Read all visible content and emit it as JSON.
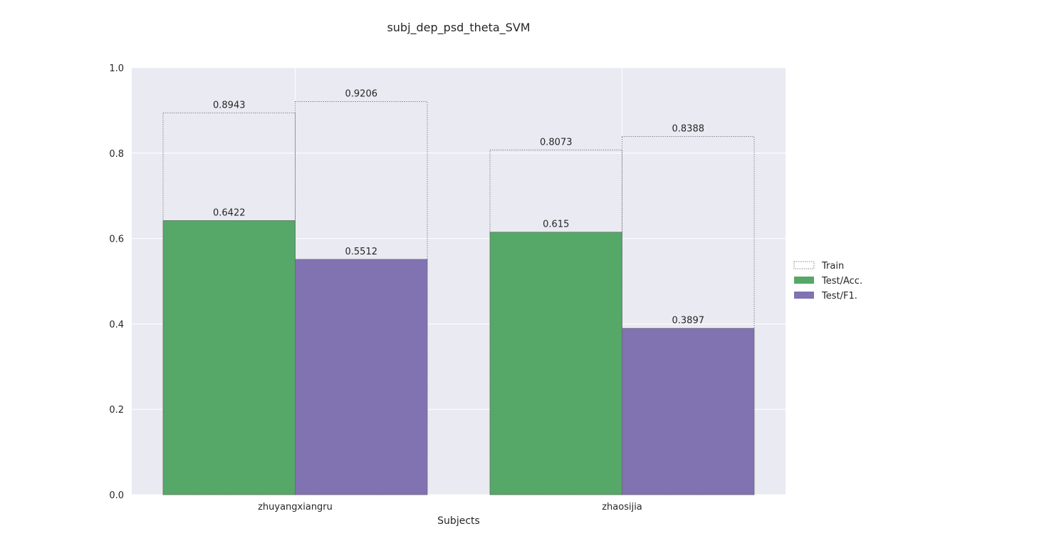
{
  "chart_data": {
    "type": "bar",
    "title": "subj_dep_psd_theta_SVM",
    "xlabel": "Subjects",
    "ylabel": "",
    "ylim": [
      0,
      1.0
    ],
    "yticks": [
      "0.0",
      "0.2",
      "0.4",
      "0.6",
      "0.8",
      "1.0"
    ],
    "categories": [
      "zhuyangxiangru",
      "zhaosijia"
    ],
    "grid": true,
    "legend_position": "right",
    "train": {
      "name": "Train",
      "acc_values": [
        0.8943,
        0.8073
      ],
      "f1_values": [
        0.9206,
        0.8388
      ],
      "acc_labels": [
        "0.8943",
        "0.8073"
      ],
      "f1_labels": [
        "0.9206",
        "0.8388"
      ]
    },
    "series": [
      {
        "name": "Test/Acc.",
        "color": "#55a868",
        "values": [
          0.6422,
          0.615
        ],
        "labels": [
          "0.6422",
          "0.615"
        ]
      },
      {
        "name": "Test/F1.",
        "color": "#8172b2",
        "values": [
          0.5512,
          0.3897
        ],
        "labels": [
          "0.5512",
          "0.3897"
        ]
      }
    ],
    "colors": {
      "background": "#eaeaf2",
      "grid": "#ffffff",
      "train_edge": "#888888"
    }
  }
}
